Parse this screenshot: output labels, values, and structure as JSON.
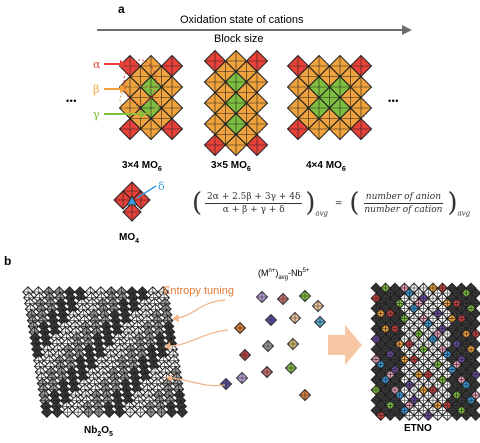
{
  "panel_a": {
    "label": "a",
    "arrow_label_1": "Oxidation state of cations",
    "arrow_label_2": "Block size",
    "site_alpha": "α",
    "site_beta": "β",
    "site_gamma": "γ",
    "site_delta": "δ",
    "ellipsis_left": "• • •",
    "ellipsis_right": "• • •",
    "block_1_label": "3×4 MO",
    "block_1_sub": "6",
    "block_2_label": "3×5 MO",
    "block_2_sub": "6",
    "block_3_label": "4×4 MO",
    "block_3_sub": "6",
    "tetra_label": "MO",
    "tetra_sub": "4",
    "eq_numerator": "2α + 2.5β + 3γ + 4δ",
    "eq_denominator": "α + β + γ + δ",
    "eq_avg": "avg",
    "eq_equals": "=",
    "eq_rhs_numerator": "number of anion",
    "eq_rhs_denominator": "number of cation",
    "eq_rhs_avg": "avg",
    "colors": {
      "alpha": "#e8413a",
      "beta": "#f0a23c",
      "gamma": "#7fbf3f",
      "delta": "#3a9ad9"
    }
  },
  "panel_b": {
    "label": "b",
    "entropy_label": "Entropy tuning",
    "formula_prefix": "(M",
    "formula_sup": "n+",
    "formula_mid": ")",
    "formula_sub": "avg",
    "formula_suffix": "-Nb",
    "formula_sup2": "5+",
    "left_label": "Nb",
    "left_sub1": "2",
    "left_mid": "O",
    "left_sub2": "5",
    "right_label": "ETNO",
    "colors": {
      "arrow": "#f2b48a",
      "entropy_text": "#e07a35"
    }
  }
}
